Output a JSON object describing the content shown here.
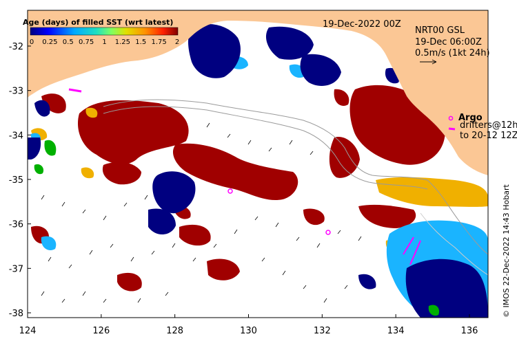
{
  "map": {
    "date_label": "19-Dec-2022 00Z",
    "product_line1": "NRT00 GSL",
    "product_line2": "19-Dec 06:00Z",
    "product_line3": "0.5m/s (1kt 24h)",
    "argo_label": "Argo",
    "drifters_line1": "drifters@12h",
    "drifters_line2": "to 20-12 12Z",
    "credit": "© IMOS 22-Dec-2022 14:43 Hobart",
    "x_ticks": [
      "124",
      "126",
      "128",
      "130",
      "132",
      "134",
      "136"
    ],
    "y_ticks": [
      "-32",
      "-33",
      "-34",
      "-35",
      "-36",
      "-37",
      "-38"
    ]
  },
  "colorbar": {
    "title": "Age (days) of filled SST (wrt latest)",
    "ticks": [
      "0",
      "0.25",
      "0.5",
      "0.75",
      "1",
      "1.25",
      "1.5",
      "1.75",
      "2"
    ]
  },
  "colors": {
    "land": "#fbc795",
    "age_0": "#000080",
    "age_0_5": "#1ab4ff",
    "age_1": "#00b000",
    "age_1_5": "#f0b000",
    "age_2": "#a00000",
    "marker": "#ff00ff"
  }
}
